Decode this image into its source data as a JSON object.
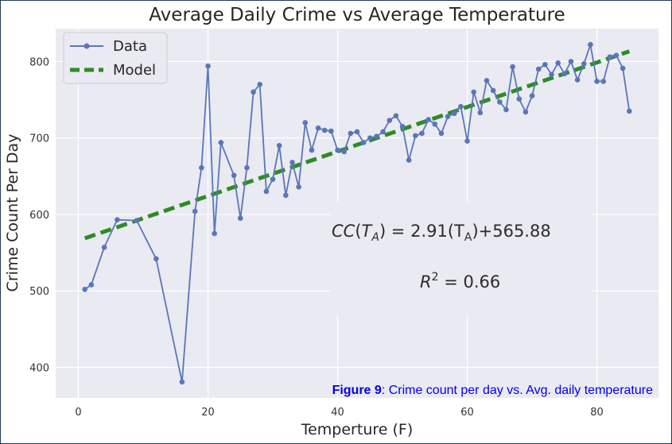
{
  "chart_data": {
    "type": "line",
    "title": "Average Daily Crime vs Average Temperature",
    "xlabel": "Temperture (F)",
    "ylabel": "Crime Count Per Day",
    "xlim": [
      -3.5,
      89.5
    ],
    "ylim": [
      360,
      843
    ],
    "xticks": [
      0,
      20,
      40,
      60,
      80
    ],
    "yticks": [
      400,
      500,
      600,
      700,
      800
    ],
    "grid": true,
    "legend": {
      "placement": "top-left",
      "entries": [
        "Data",
        "Model"
      ]
    },
    "series": [
      {
        "name": "Data",
        "color": "#5a76b8",
        "style": "line-with-markers",
        "x": [
          1,
          2,
          4,
          6,
          9,
          12,
          16,
          18,
          19,
          20,
          21,
          22,
          24,
          25,
          26,
          27,
          28,
          29,
          30,
          31,
          32,
          33,
          34,
          35,
          36,
          37,
          38,
          39,
          40,
          41,
          42,
          43,
          44,
          45,
          46,
          47,
          48,
          49,
          50,
          51,
          52,
          53,
          54,
          55,
          56,
          57,
          58,
          59,
          60,
          61,
          62,
          63,
          64,
          65,
          66,
          67,
          68,
          69,
          70,
          71,
          72,
          73,
          74,
          75,
          76,
          77,
          78,
          79,
          80,
          81,
          82,
          83,
          84,
          85
        ],
        "y": [
          502,
          508,
          557,
          593,
          592,
          542,
          381,
          604,
          661,
          794,
          575,
          694,
          651,
          595,
          661,
          760,
          770,
          630,
          646,
          690,
          625,
          668,
          636,
          720,
          684,
          713,
          710,
          709,
          684,
          682,
          706,
          708,
          694,
          700,
          702,
          708,
          723,
          729,
          715,
          671,
          703,
          706,
          724,
          718,
          706,
          728,
          732,
          741,
          696,
          760,
          733,
          775,
          762,
          747,
          737,
          793,
          751,
          734,
          755,
          790,
          796,
          783,
          798,
          784,
          800,
          776,
          797,
          822,
          774,
          774,
          806,
          808,
          791,
          735
        ]
      },
      {
        "name": "Model",
        "color": "#2e8b27",
        "style": "dashed",
        "x": [
          1,
          85
        ],
        "y": [
          568.79,
          813.23
        ]
      }
    ],
    "annotations": {
      "equation": "CC(T_A) = 2.91(T_A)+565.88",
      "r_squared": "R² = 0.66"
    }
  },
  "caption": {
    "label": "Figure 9",
    "text": ": Crime count per day vs. Avg. daily temperature"
  }
}
